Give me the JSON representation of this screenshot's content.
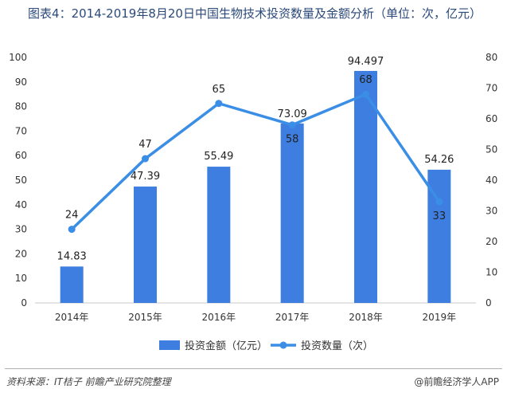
{
  "title": "图表4：2014-2019年8月20日中国生物技术投资数量及金额分析（单位：次，亿元）",
  "source": "资料来源：IT桔子  前瞻产业研究院整理",
  "brand": "@前瞻经济学人APP",
  "chart_data": {
    "type": "bar",
    "categories": [
      "2014年",
      "2015年",
      "2016年",
      "2017年",
      "2018年",
      "2019年"
    ],
    "series": [
      {
        "name": "投资金额（亿元）",
        "type": "bar",
        "axis": "left",
        "values": [
          14.83,
          47.39,
          55.49,
          73.09,
          94.497,
          54.26
        ],
        "labels": [
          "14.83",
          "47.39",
          "55.49",
          "73.09",
          "94.497",
          "54.26"
        ],
        "color": "#3d7ee0"
      },
      {
        "name": "投资数量（次）",
        "type": "line",
        "axis": "right",
        "values": [
          24,
          47,
          65,
          58,
          68,
          33
        ],
        "labels": [
          "24",
          "47",
          "65",
          "58",
          "68",
          "33"
        ],
        "color": "#3a8ee6"
      }
    ],
    "y_left": {
      "ylim": [
        0,
        100
      ],
      "ticks": [
        "0",
        "10",
        "20",
        "30",
        "40",
        "50",
        "60",
        "70",
        "80",
        "90",
        "100"
      ]
    },
    "y_right": {
      "ylim": [
        0,
        80
      ],
      "ticks": [
        "0",
        "10",
        "20",
        "30",
        "40",
        "50",
        "60",
        "70",
        "80"
      ]
    },
    "grid": false,
    "legend_position": "bottom"
  }
}
